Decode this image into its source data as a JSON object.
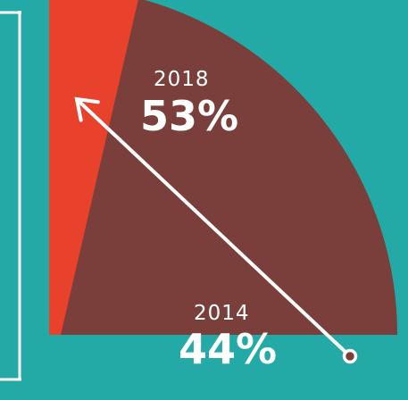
{
  "colors": {
    "background": "#23aaa6",
    "frame": "#ffffff",
    "total_sector": "#7a3f3a",
    "highlight_sector": "#e8422d",
    "arrow": "#ffffff"
  },
  "chart_data": {
    "type": "pie",
    "title": "",
    "series": [
      {
        "label": "2014",
        "value": 44
      },
      {
        "label": "2018",
        "value": 53
      }
    ],
    "labels": [
      {
        "year": "2018",
        "value": "53%"
      },
      {
        "year": "2014",
        "value": "44%"
      }
    ],
    "arrow": {
      "from": "2014",
      "to": "2018",
      "direction": "up-left"
    }
  }
}
